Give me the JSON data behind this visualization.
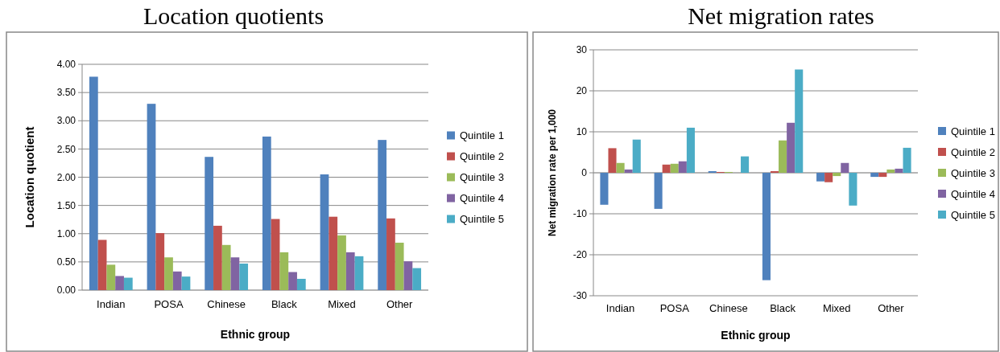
{
  "chart_data": [
    {
      "type": "bar",
      "title": "Location quotients",
      "xlabel": "Ethnic group",
      "ylabel": "Location quotient",
      "categories": [
        "Indian",
        "POSA",
        "Chinese",
        "Black",
        "Mixed",
        "Other"
      ],
      "series": [
        {
          "name": "Quintile 1",
          "color": "#4f81bd",
          "values": [
            3.78,
            3.3,
            2.36,
            2.72,
            2.05,
            2.66
          ]
        },
        {
          "name": "Quintile 2",
          "color": "#c0504d",
          "values": [
            0.89,
            1.01,
            1.14,
            1.26,
            1.3,
            1.27
          ]
        },
        {
          "name": "Quintile 3",
          "color": "#9bbb59",
          "values": [
            0.45,
            0.58,
            0.8,
            0.67,
            0.97,
            0.84
          ]
        },
        {
          "name": "Quintile 4",
          "color": "#8064a2",
          "values": [
            0.25,
            0.33,
            0.58,
            0.32,
            0.67,
            0.51
          ]
        },
        {
          "name": "Quintile 5",
          "color": "#4bacc6",
          "values": [
            0.22,
            0.24,
            0.47,
            0.2,
            0.6,
            0.39
          ]
        }
      ],
      "ylim": [
        0,
        4
      ],
      "yticks": [
        {
          "value": 0,
          "label": "0.00"
        },
        {
          "value": 0.5,
          "label": "0.50"
        },
        {
          "value": 1,
          "label": "1.00"
        },
        {
          "value": 1.5,
          "label": "1.50"
        },
        {
          "value": 2,
          "label": "2.00"
        },
        {
          "value": 2.5,
          "label": "2.50"
        },
        {
          "value": 3,
          "label": "3.00"
        },
        {
          "value": 3.5,
          "label": "3.50"
        },
        {
          "value": 4,
          "label": "4.00"
        }
      ],
      "grid": "y",
      "legend": "right"
    },
    {
      "type": "bar",
      "title": "Net migration rates",
      "xlabel": "Ethnic group",
      "ylabel": "Net migration rate per 1,000",
      "categories": [
        "Indian",
        "POSA",
        "Chinese",
        "Black",
        "Mixed",
        "Other"
      ],
      "series": [
        {
          "name": "Quintile 1",
          "color": "#4f81bd",
          "values": [
            -7.8,
            -8.8,
            0.4,
            -26.2,
            -2.1,
            -1
          ]
        },
        {
          "name": "Quintile 2",
          "color": "#c0504d",
          "values": [
            6,
            2,
            0.2,
            0.4,
            -2.3,
            -1
          ]
        },
        {
          "name": "Quintile 3",
          "color": "#9bbb59",
          "values": [
            2.4,
            2.2,
            0.2,
            7.9,
            -0.8,
            0.8
          ]
        },
        {
          "name": "Quintile 4",
          "color": "#8064a2",
          "values": [
            0.8,
            2.8,
            0,
            12.2,
            2.4,
            1
          ]
        },
        {
          "name": "Quintile 5",
          "color": "#4bacc6",
          "values": [
            8.1,
            11,
            4,
            25.2,
            -8,
            6.1
          ]
        }
      ],
      "ylim": [
        -30,
        30
      ],
      "yticks": [
        -30,
        -20,
        -10,
        0,
        10,
        20,
        30
      ],
      "grid": "y",
      "legend": "right"
    }
  ]
}
